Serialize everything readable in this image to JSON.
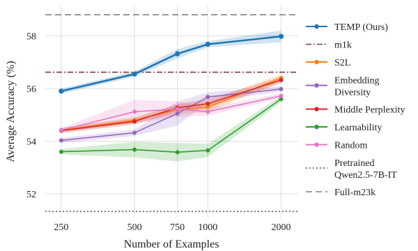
{
  "chart_data": {
    "type": "line",
    "xlabel": "Number of Examples",
    "ylabel": "Average Accuracy (%)",
    "x": [
      250,
      500,
      750,
      1000,
      2000
    ],
    "x_ticks": [
      "250",
      "500",
      "750",
      "1000",
      "2000"
    ],
    "x_scale": "log",
    "y_ticks": [
      "52",
      "54",
      "56",
      "58"
    ],
    "xlim": [
      215,
      2350
    ],
    "ylim": [
      51.1,
      59.15
    ],
    "grid": true,
    "legend_position": "right",
    "series": [
      {
        "name": "TEMP (Ours)",
        "color": "#1f77b4",
        "values": [
          55.9,
          56.55,
          57.32,
          57.68,
          57.98
        ],
        "band": [
          0.1,
          0.1,
          0.18,
          0.12,
          0.22
        ]
      },
      {
        "name": "S2L",
        "color": "#ff7f0e",
        "values": [
          54.42,
          54.8,
          55.2,
          55.3,
          56.4
        ],
        "band": [
          0.08,
          0.12,
          0.18,
          0.2,
          0.15
        ]
      },
      {
        "name": "Embedding Diversity",
        "color": "#9467bd",
        "values": [
          54.03,
          54.32,
          55.05,
          55.68,
          55.98
        ],
        "band": [
          0.1,
          0.12,
          0.45,
          0.18,
          0.1
        ]
      },
      {
        "name": "Middle Perplexity",
        "color": "#d62728",
        "values": [
          54.4,
          54.75,
          55.27,
          55.42,
          56.32
        ],
        "band": [
          0.1,
          0.12,
          0.15,
          0.18,
          0.12
        ]
      },
      {
        "name": "Learnability",
        "color": "#2ca02c",
        "values": [
          53.6,
          53.68,
          53.58,
          53.65,
          55.6
        ],
        "band": [
          0.1,
          0.3,
          0.35,
          0.25,
          0.12
        ]
      },
      {
        "name": "Random",
        "color": "#e377c2",
        "values": [
          54.42,
          55.12,
          55.22,
          55.12,
          55.72
        ],
        "band": [
          0.08,
          0.45,
          0.3,
          0.15,
          0.1
        ]
      }
    ],
    "reference_lines": [
      {
        "name": "m1k",
        "value": 56.62,
        "color": "#7b3b3b",
        "dash": "dashdot"
      },
      {
        "name": "Pretrained Qwen2.5-7B-IT",
        "value": 51.33,
        "color": "#555555",
        "dash": "dotted"
      },
      {
        "name": "Full-m23k",
        "value": 58.8,
        "color": "#808080",
        "dash": "dashed"
      }
    ],
    "legend": [
      {
        "key": "temp",
        "label": [
          "TEMP (Ours)"
        ],
        "color": "#1f77b4",
        "style": "marker-line"
      },
      {
        "key": "m1k",
        "label": [
          "m1k"
        ],
        "color": "#7b3b3b",
        "style": "dashdot"
      },
      {
        "key": "s2l",
        "label": [
          "S2L"
        ],
        "color": "#ff7f0e",
        "style": "marker-line"
      },
      {
        "key": "embedding",
        "label": [
          "Embedding",
          "Diversity"
        ],
        "color": "#9467bd",
        "style": "marker-line"
      },
      {
        "key": "middle",
        "label": [
          "Middle Perplexity"
        ],
        "color": "#d62728",
        "style": "marker-line"
      },
      {
        "key": "learnability",
        "label": [
          "Learnability"
        ],
        "color": "#2ca02c",
        "style": "marker-line"
      },
      {
        "key": "random",
        "label": [
          "Random"
        ],
        "color": "#e377c2",
        "style": "marker-line"
      },
      {
        "key": "pretrained",
        "label": [
          "Pretrained",
          "Qwen2.5-7B-IT"
        ],
        "color": "#555555",
        "style": "dotted"
      },
      {
        "key": "full",
        "label": [
          "Full-m23k"
        ],
        "color": "#808080",
        "style": "dashed"
      }
    ]
  }
}
